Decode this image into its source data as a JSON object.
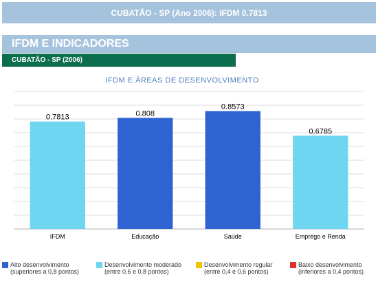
{
  "header": {
    "title": "CUBATÃO - SP (Ano 2006): IFDM 0.7813"
  },
  "section": {
    "title": "IFDM E INDICADORES",
    "subtitle": "CUBATÃO - SP (2006)"
  },
  "chart_data": {
    "type": "bar",
    "title": "IFDM E ÁREAS DE DESENVOLVIMENTO",
    "categories": [
      "IFDM",
      "Educação",
      "Saúde",
      "Emprego e Renda"
    ],
    "values": [
      0.7813,
      0.808,
      0.8573,
      0.6785
    ],
    "data_labels": [
      "0.7813",
      "0.808",
      "0.8573",
      "0.6785"
    ],
    "bar_colors": [
      "#6ed6f0",
      "#2f63d1",
      "#2f63d1",
      "#6ed6f0"
    ],
    "ylim": [
      0,
      1
    ],
    "grid": true,
    "legend_position": "bottom"
  },
  "legend": [
    {
      "color": "#2f63d1",
      "line1": "Alto desenvolvimento",
      "line2": "(superiores a 0,8 pontos)"
    },
    {
      "color": "#6ed6f0",
      "line1": "Desenvolvimento moderado",
      "line2": "(entre 0,6 e 0,8 pontos)"
    },
    {
      "color": "#f2c200",
      "line1": "Desenvolvimento regular",
      "line2": "(entre 0,4 e 0,6 pontos)"
    },
    {
      "color": "#e03030",
      "line1": "Baixo desenvolvimento",
      "line2": "(inferiores a 0,4 pontos)"
    }
  ]
}
